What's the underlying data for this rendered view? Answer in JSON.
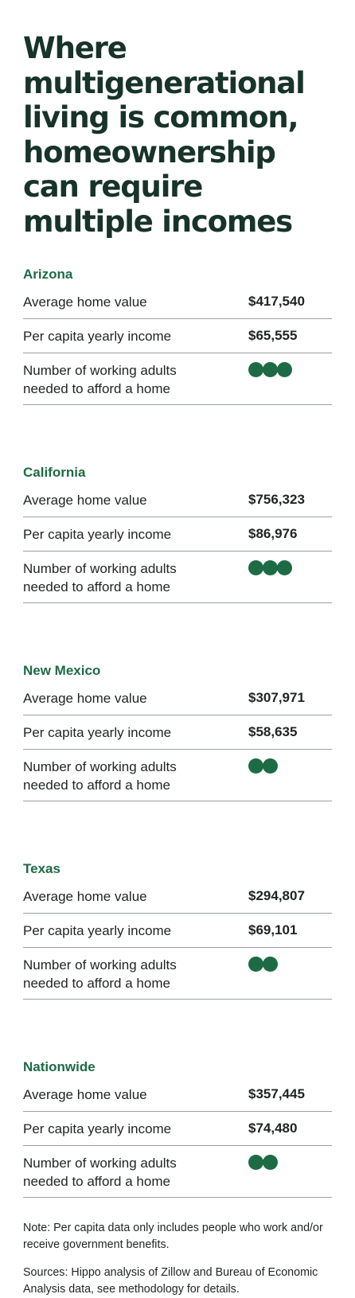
{
  "title_lines": [
    "Where",
    "multigenerational",
    "living is common,",
    "homeownership",
    "can require",
    "multiple incomes"
  ],
  "colors": {
    "title": "#17332a",
    "accent": "#1d6b45",
    "divider": "#9aa19d"
  },
  "labels": {
    "home_value": "Average home value",
    "income": "Per capita yearly income",
    "adults": "Number of working adults needed to afford a home"
  },
  "regions": [
    {
      "name": "Arizona",
      "home_value": "$417,540",
      "income": "$65,555",
      "adults": 3
    },
    {
      "name": "California",
      "home_value": "$756,323",
      "income": "$86,976",
      "adults": 3
    },
    {
      "name": "New Mexico",
      "home_value": "$307,971",
      "income": "$58,635",
      "adults": 2
    },
    {
      "name": "Texas",
      "home_value": "$294,807",
      "income": "$69,101",
      "adults": 2
    },
    {
      "name": "Nationwide",
      "home_value": "$357,445",
      "income": "$74,480",
      "adults": 2
    }
  ],
  "note": "Note: Per capita data only includes people who work and/or receive government benefits.",
  "sources": "Sources: Hippo analysis of Zillow and Bureau of Economic Analysis data, see methodology for details."
}
